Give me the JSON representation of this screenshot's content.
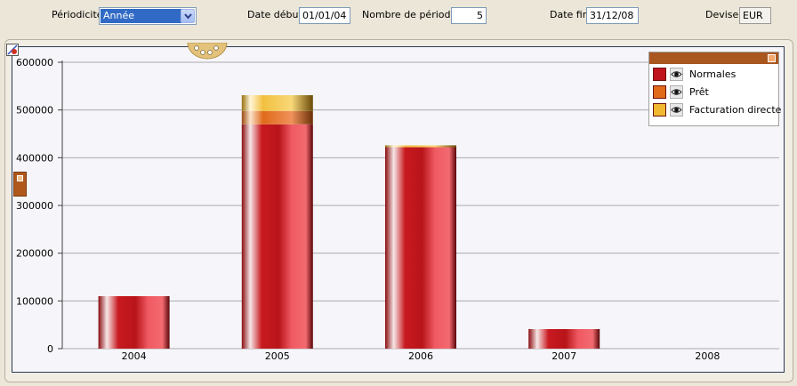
{
  "toolbar": {
    "periodicite_label": "Périodicité",
    "periodicite_value": "Année",
    "date_debut_label": "Date début",
    "date_debut_value": "01/01/04",
    "nombre_periodes_label": "Nombre de périodes",
    "nombre_periodes_value": "5",
    "date_fin_label": "Date fin",
    "date_fin_value": "31/12/08",
    "devise_label": "Devise",
    "devise_value": "EUR"
  },
  "legend": {
    "items": [
      {
        "label": "Normales",
        "color": "#c0141c",
        "icon": "eye-icon"
      },
      {
        "label": "Prêt",
        "color": "#e06a1a",
        "icon": "eye-icon"
      },
      {
        "label": "Facturation directe",
        "color": "#f0b830",
        "icon": "eye-icon"
      }
    ]
  },
  "chart_data": {
    "type": "bar",
    "stacked": true,
    "categories": [
      "2004",
      "2005",
      "2006",
      "2007",
      "2008"
    ],
    "series": [
      {
        "name": "Normales",
        "values": [
          110000,
          470000,
          422000,
          41000,
          0
        ]
      },
      {
        "name": "Prêt",
        "values": [
          0,
          28000,
          0,
          0,
          0
        ]
      },
      {
        "name": "Facturation directe",
        "values": [
          0,
          33000,
          4000,
          0,
          0
        ]
      }
    ],
    "yticks": [
      "0",
      "100000",
      "200000",
      "300000",
      "400000",
      "500000",
      "600000"
    ],
    "ylim": [
      0,
      600000
    ],
    "grid": true,
    "legend_position": "top-right"
  }
}
